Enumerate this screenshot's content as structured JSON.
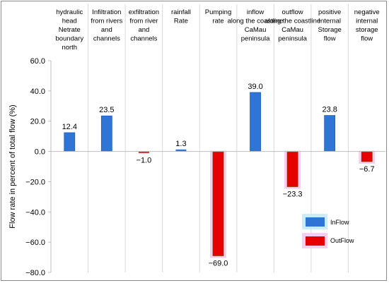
{
  "chart_data": {
    "type": "bar",
    "title": "",
    "xlabel": "",
    "ylabel": "Flow rate in percent of total flow (%)",
    "ylim": [
      -80,
      60
    ],
    "yticks": [
      60,
      40,
      20,
      0,
      -20,
      -40,
      -60,
      -80
    ],
    "ytick_labels": [
      "60.0",
      "40.0",
      "20.0",
      "0.0",
      "−20.0",
      "−40.0",
      "−60.0",
      "−80.0"
    ],
    "grid": "vertical separators between categories",
    "legend_position": "lower-right",
    "categories": [
      [
        "hydraulic",
        "head",
        "Netrate",
        "boundary",
        "north"
      ],
      [
        "Infiltration",
        "from rivers",
        "and",
        "channels"
      ],
      [
        "exfiltration",
        "from river",
        "and",
        "channels"
      ],
      [
        "rainfall",
        "Rate"
      ],
      [
        "Pumping",
        "rate"
      ],
      [
        "inflow",
        "along the coastline",
        "CaMau",
        "peninsula"
      ],
      [
        "outflow",
        "along the coastline",
        "CaMau",
        "peninsula"
      ],
      [
        "positive",
        "Internal",
        "Storage",
        "flow"
      ],
      [
        "negative",
        "internal",
        "storage",
        "flow"
      ]
    ],
    "series": [
      {
        "name": "InFlow",
        "color": "#2e75d6",
        "values": [
          12.4,
          23.5,
          null,
          1.3,
          null,
          39.0,
          null,
          23.8,
          null
        ]
      },
      {
        "name": "OutFlow",
        "color": "#e60000",
        "values": [
          null,
          null,
          -1.0,
          null,
          -69.0,
          null,
          -23.3,
          null,
          -6.7
        ]
      }
    ],
    "data_labels": [
      "12.4",
      "23.5",
      "−1.0",
      "1.3",
      "−69.0",
      "39.0",
      "−23.3",
      "23.8",
      "−6.7"
    ]
  }
}
